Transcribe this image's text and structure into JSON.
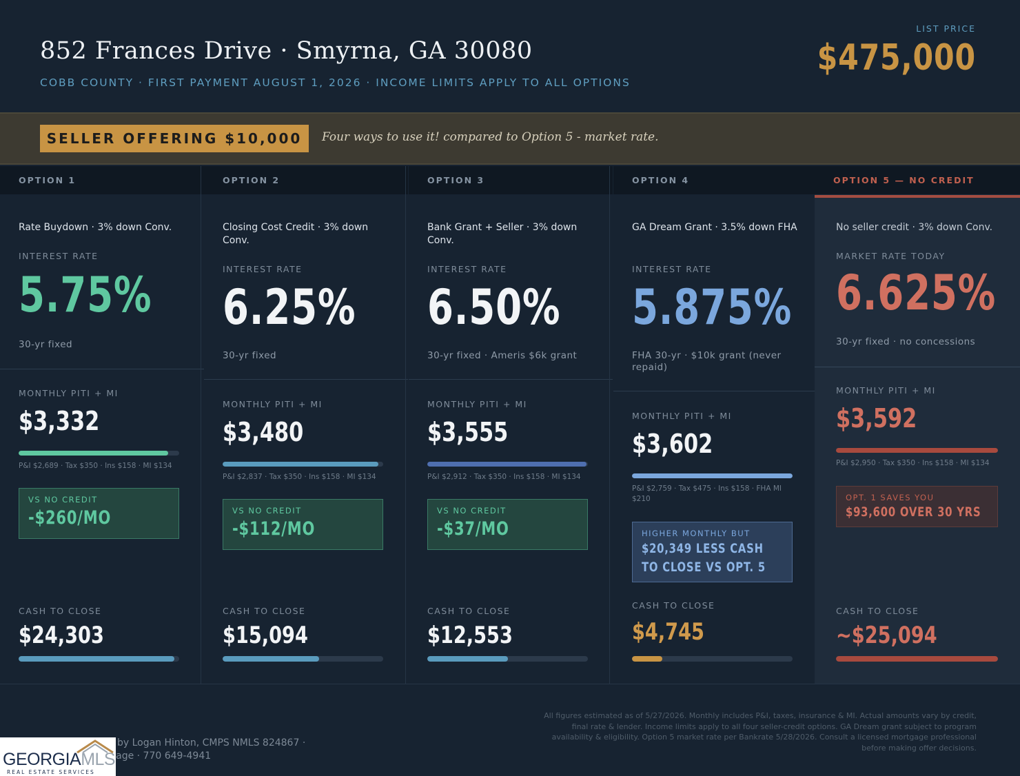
{
  "header": {
    "address": "852 Frances Drive  ·  Smyrna, GA 30080",
    "subline": "COBB COUNTY  ·  FIRST PAYMENT AUGUST 1, 2026  ·  INCOME LIMITS APPLY TO ALL OPTIONS",
    "list_price_label": "LIST PRICE",
    "list_price": "$475,000"
  },
  "banner": {
    "badge": "SELLER OFFERING $10,000",
    "text": "Four ways to use it! compared to Option 5 - market rate."
  },
  "options": [
    {
      "heading": "OPTION 1",
      "product": "Rate Buydown · 3% down Conv.",
      "rate_label": "INTEREST RATE",
      "rate": "5.75%",
      "rate_note": "30-yr fixed",
      "monthly_label": "MONTHLY PITI + MI",
      "monthly": "$3,332",
      "monthly_bar": 0.93,
      "breakdown": "P&I $2,689 · Tax $350 · Ins $158 · MI $134",
      "box_label": "VS NO CREDIT",
      "box_value": "-$260/MO",
      "cash_label": "CASH TO CLOSE",
      "cash": "$24,303",
      "cash_bar": 0.97
    },
    {
      "heading": "OPTION 2",
      "product": "Closing Cost Credit · 3% down Conv.",
      "rate_label": "INTEREST RATE",
      "rate": "6.25%",
      "rate_note": "30-yr fixed",
      "monthly_label": "MONTHLY PITI + MI",
      "monthly": "$3,480",
      "monthly_bar": 0.97,
      "breakdown": "P&I $2,837 · Tax $350 · Ins $158 · MI $134",
      "box_label": "VS NO CREDIT",
      "box_value": "-$112/MO",
      "cash_label": "CASH TO CLOSE",
      "cash": "$15,094",
      "cash_bar": 0.6
    },
    {
      "heading": "OPTION 3",
      "product": "Bank Grant + Seller · 3% down Conv.",
      "rate_label": "INTEREST RATE",
      "rate": "6.50%",
      "rate_note": "30-yr fixed · Ameris $6k grant",
      "monthly_label": "MONTHLY PITI + MI",
      "monthly": "$3,555",
      "monthly_bar": 0.99,
      "breakdown": "P&I $2,912 · Tax $350 · Ins $158 · MI $134",
      "box_label": "VS NO CREDIT",
      "box_value": "-$37/MO",
      "cash_label": "CASH TO CLOSE",
      "cash": "$12,553",
      "cash_bar": 0.5
    },
    {
      "heading": "OPTION 4",
      "product": "GA Dream Grant · 3.5% down FHA",
      "rate_label": "INTEREST RATE",
      "rate": "5.875%",
      "rate_note": "FHA 30-yr · $10k grant (never repaid)",
      "monthly_label": "MONTHLY PITI + MI",
      "monthly": "$3,602",
      "monthly_bar": 1.0,
      "breakdown": "P&I $2,759 · Tax $475 · Ins $158 · FHA MI $210",
      "box_label": "HIGHER MONTHLY BUT",
      "box_value": "$20,349 LESS CASH TO CLOSE VS OPT. 5",
      "cash_label": "CASH TO CLOSE",
      "cash": "$4,745",
      "cash_bar": 0.19
    },
    {
      "heading": "OPTION 5 — NO CREDIT",
      "product": "No seller credit · 3% down Conv.",
      "rate_label": "MARKET RATE TODAY",
      "rate": "6.625%",
      "rate_note": "30-yr fixed · no concessions",
      "monthly_label": "MONTHLY PITI + MI",
      "monthly": "$3,592",
      "monthly_bar": 1.0,
      "breakdown": "P&I $2,950 · Tax $350 · Ins $158 · MI $134",
      "box_label": "OPT. 1 SAVES YOU",
      "box_value": "$93,600 OVER 30 YRS",
      "cash_label": "CASH TO CLOSE",
      "cash": "~$25,094",
      "cash_bar": 1.0
    }
  ],
  "colors": {
    "background": "#172331",
    "gold": "#c89444",
    "green": "#5fc8a0",
    "blue": "#7ba7dd",
    "red": "#d07060",
    "white": "#f2f4f6"
  },
  "footer": {
    "disclaimer": "All figures estimated as of 5/27/2026. Monthly includes P&I, taxes, insurance & MI. Actual amounts vary by credit, final rate & lender. Income limits apply to all four seller-credit options. GA Dream grant subject to program availability & eligibility. Option 5 market rate per Bankrate 5/28/2026. Consult a licensed mortgage professional before making offer decisions.",
    "prepared_line1": "ed by Logan Hinton, CMPS   NMLS 824867 ·",
    "prepared_line2": "rtgage · 770 649-4941",
    "logo_main": "GEORGIA",
    "logo_mls": "MLS",
    "logo_sub": "REAL ESTATE SERVICES"
  }
}
